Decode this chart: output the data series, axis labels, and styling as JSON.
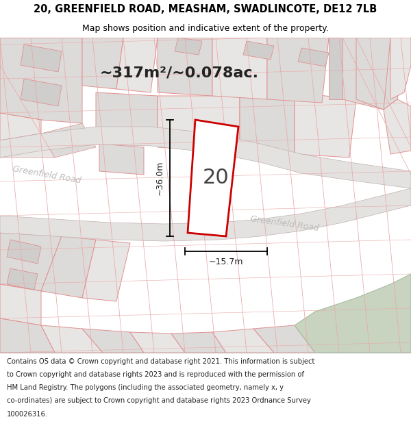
{
  "title_line1": "20, GREENFIELD ROAD, MEASHAM, SWADLINCOTE, DE12 7LB",
  "title_line2": "Map shows position and indicative extent of the property.",
  "area_label": "~317m²/~0.078ac.",
  "plot_number": "20",
  "dim_vertical": "~36.0m",
  "dim_horizontal": "~15.7m",
  "road_label1": "Greenfield Road",
  "road_label2": "Greenfield Road",
  "footer_lines": [
    "Contains OS data © Crown copyright and database right 2021. This information is subject",
    "to Crown copyright and database rights 2023 and is reproduced with the permission of",
    "HM Land Registry. The polygons (including the associated geometry, namely x, y",
    "co-ordinates) are subject to Crown copyright and database rights 2023 Ordnance Survey",
    "100026316."
  ],
  "map_bg": "#f0eeec",
  "plot_line_color": "#cc0000",
  "parcel_edge": "#e09090",
  "parcel_fill_light": "#e8e6e4",
  "parcel_fill_mid": "#dddbd9",
  "parcel_fill_dark": "#d0cecc",
  "road_fill": "#e4e2e0",
  "green_fill": "#c8d4c0",
  "text_color": "#222222",
  "road_text_color": "#bbbbbb",
  "title_fontsize": 10.5,
  "subtitle_fontsize": 9,
  "footer_fontsize": 7.2,
  "area_fontsize": 16,
  "number_fontsize": 22,
  "dim_fontsize": 9
}
